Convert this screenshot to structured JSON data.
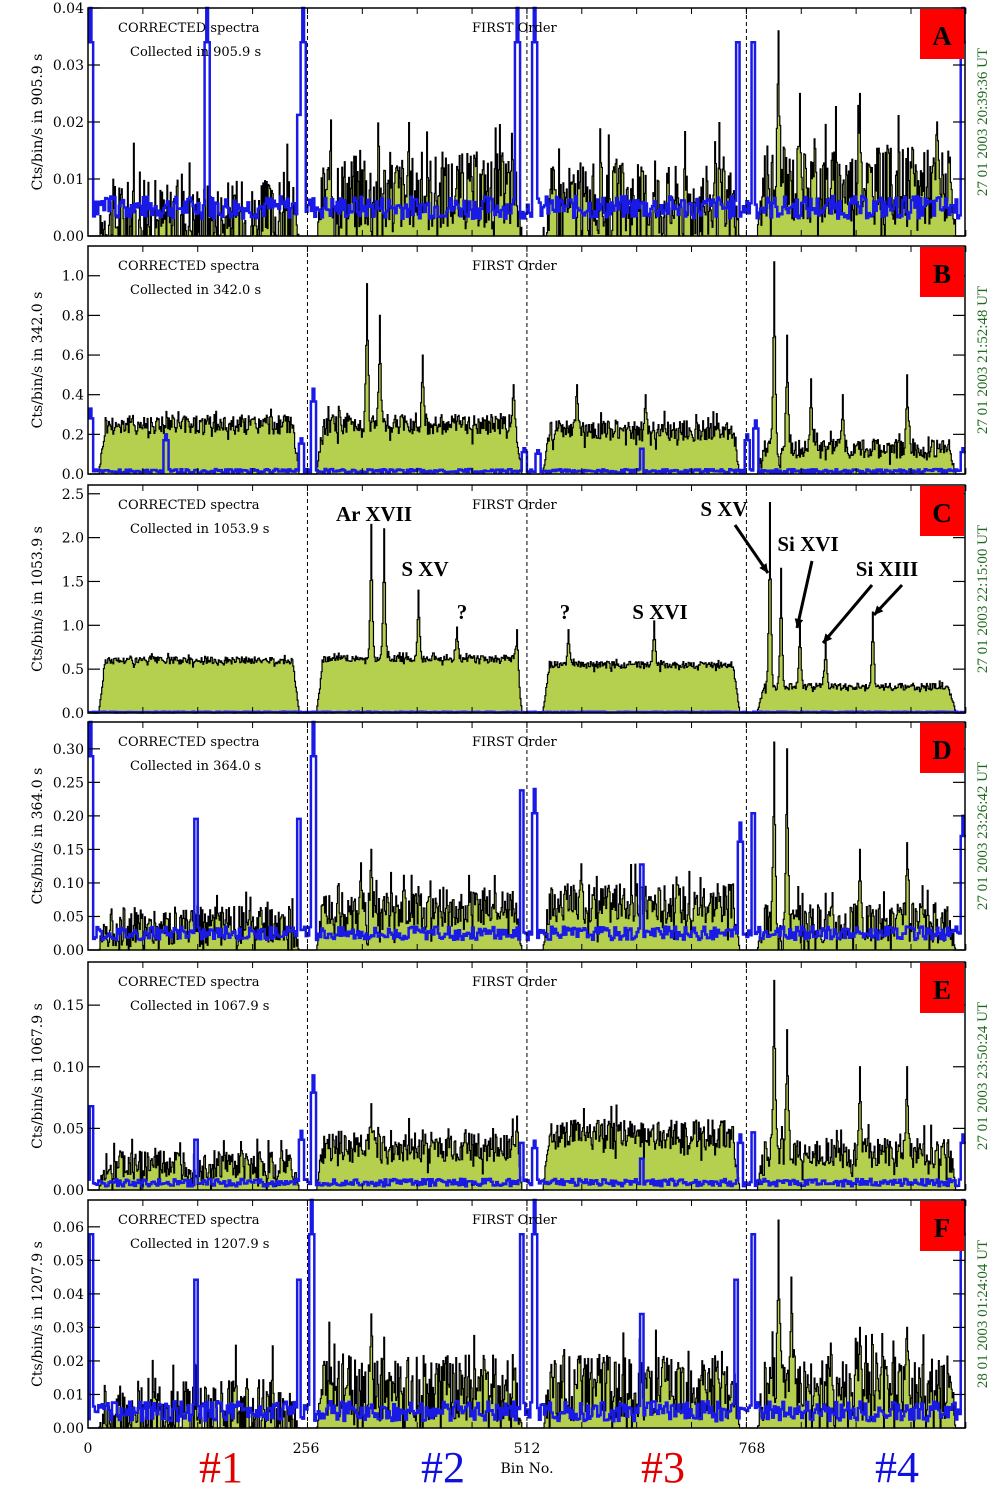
{
  "colors": {
    "fill": "#b5cf4f",
    "outline": "#000000",
    "blue": "#1a1ae6",
    "badge": "#ff0000",
    "date_text": "#1f6a1f",
    "section_red": "#e00000",
    "section_blue": "#1010e0"
  },
  "chart_data": [
    {
      "type": "area",
      "panel": "A",
      "annotation_line1": "CORRECTED spectra",
      "annotation_line2": "Collected in   905.9 s",
      "order_label": "FIRST Order",
      "ylabel": "Cts/bin/s in   905.9 s",
      "right_label": "27 01 2003   20:39:36 UT",
      "ylim": [
        0,
        0.04
      ],
      "yticks": [
        "0.00",
        "0.01",
        "0.02",
        "0.03",
        "0.04"
      ],
      "ytick_values": [
        0,
        0.01,
        0.02,
        0.03,
        0.04
      ],
      "baseline": [
        0.003,
        0.008,
        0.006,
        0.009
      ],
      "noise": 0.007,
      "blue_level": 0.005,
      "blue_noise": 0.002,
      "blue_spikes": [
        [
          2,
          0.04
        ],
        [
          138,
          0.04
        ],
        [
          245,
          0.025
        ],
        [
          250,
          0.04
        ],
        [
          500,
          0.04
        ],
        [
          520,
          0.04
        ],
        [
          757,
          0.04
        ],
        [
          775,
          0.04
        ],
        [
          1020,
          0.04
        ]
      ],
      "peaks": [
        [
          805,
          0.036
        ],
        [
          830,
          0.025
        ],
        [
          900,
          0.025
        ],
        [
          990,
          0.02
        ]
      ],
      "lines": []
    },
    {
      "type": "area",
      "panel": "B",
      "annotation_line1": "CORRECTED spectra",
      "annotation_line2": "Collected in   342.0 s",
      "order_label": "FIRST Order",
      "ylabel": "Cts/bin/s in   342.0 s",
      "right_label": "27 01 2003   21:52:48 UT",
      "ylim": [
        0,
        1.15
      ],
      "yticks": [
        "0.0",
        "0.2",
        "0.4",
        "0.6",
        "0.8",
        "1.0"
      ],
      "ytick_values": [
        0,
        0.2,
        0.4,
        0.6,
        0.8,
        1.0
      ],
      "baseline": [
        0.25,
        0.25,
        0.22,
        0.13
      ],
      "noise": 0.05,
      "blue_level": 0.015,
      "blue_noise": 0.01,
      "blue_spikes": [
        [
          2,
          0.33
        ],
        [
          90,
          0.2
        ],
        [
          248,
          0.18
        ],
        [
          262,
          0.43
        ],
        [
          508,
          0.13
        ],
        [
          524,
          0.12
        ],
        [
          645,
          0.15
        ],
        [
          768,
          0.2
        ],
        [
          778,
          0.27
        ],
        [
          1020,
          0.13
        ]
      ],
      "peaks": [
        [
          325,
          0.96
        ],
        [
          340,
          0.8
        ],
        [
          390,
          0.6
        ],
        [
          496,
          0.45
        ],
        [
          570,
          0.45
        ],
        [
          650,
          0.4
        ],
        [
          800,
          1.07
        ],
        [
          815,
          0.7
        ],
        [
          843,
          0.48
        ],
        [
          880,
          0.4
        ],
        [
          955,
          0.5
        ]
      ],
      "lines": []
    },
    {
      "type": "area",
      "panel": "C",
      "annotation_line1": "CORRECTED spectra",
      "annotation_line2": "Collected in   1053.9 s",
      "order_label": "FIRST Order",
      "ylabel": "Cts/bin/s in   1053.9 s",
      "right_label": "27 01 2003   22:15:00 UT",
      "ylim": [
        0,
        2.6
      ],
      "yticks": [
        "0.0",
        "0.5",
        "1.0",
        "1.5",
        "2.0",
        "2.5"
      ],
      "ytick_values": [
        0,
        0.5,
        1.0,
        1.5,
        2.0,
        2.5
      ],
      "baseline": [
        0.6,
        0.62,
        0.55,
        0.3
      ],
      "noise": 0.04,
      "blue_level": 0.01,
      "blue_noise": 0.005,
      "blue_spikes": [],
      "peaks": [
        [
          330,
          2.15
        ],
        [
          345,
          2.1
        ],
        [
          385,
          1.4
        ],
        [
          430,
          0.98
        ],
        [
          500,
          0.95
        ],
        [
          560,
          0.95
        ],
        [
          660,
          1.05
        ],
        [
          795,
          2.4
        ],
        [
          808,
          1.65
        ],
        [
          830,
          1.05
        ],
        [
          860,
          0.85
        ],
        [
          915,
          1.15
        ]
      ],
      "lines": [
        {
          "label": "Ar XVII",
          "bin": 335,
          "value": 2.3
        },
        {
          "label": "S XV",
          "bin": 390,
          "value": 1.75
        },
        {
          "label": "?",
          "bin": 430,
          "value": 1.25
        },
        {
          "label": "?",
          "bin": 560,
          "value": 1.25
        },
        {
          "label": "S XVI",
          "bin": 660,
          "value": 1.25
        },
        {
          "label": "S XV",
          "bin": 795,
          "value": 2.4
        },
        {
          "label": "Si XVI",
          "bin": 830,
          "value": 1.05
        },
        {
          "label": "Si XIII",
          "bin": 915,
          "value": 1.15
        }
      ]
    },
    {
      "type": "area",
      "panel": "D",
      "annotation_line1": "CORRECTED spectra",
      "annotation_line2": "Collected in   364.0 s",
      "order_label": "FIRST Order",
      "ylabel": "Cts/bin/s in   364.0 s",
      "right_label": "27 01 2003   23:26:42 UT",
      "ylim": [
        0,
        0.34
      ],
      "yticks": [
        "0.00",
        "0.05",
        "0.10",
        "0.15",
        "0.20",
        "0.25",
        "0.30"
      ],
      "ytick_values": [
        0,
        0.05,
        0.1,
        0.15,
        0.2,
        0.25,
        0.3
      ],
      "baseline": [
        0.035,
        0.06,
        0.07,
        0.04
      ],
      "noise": 0.03,
      "blue_level": 0.025,
      "blue_noise": 0.01,
      "blue_spikes": [
        [
          2,
          0.34
        ],
        [
          125,
          0.23
        ],
        [
          245,
          0.23
        ],
        [
          262,
          0.34
        ],
        [
          505,
          0.28
        ],
        [
          520,
          0.24
        ],
        [
          645,
          0.15
        ],
        [
          760,
          0.19
        ],
        [
          775,
          0.24
        ],
        [
          1020,
          0.2
        ]
      ],
      "peaks": [
        [
          318,
          0.13
        ],
        [
          330,
          0.15
        ],
        [
          800,
          0.31
        ],
        [
          815,
          0.3
        ],
        [
          900,
          0.15
        ],
        [
          955,
          0.16
        ]
      ],
      "lines": []
    },
    {
      "type": "area",
      "panel": "E",
      "annotation_line1": "CORRECTED spectra",
      "annotation_line2": "Collected in   1067.9 s",
      "order_label": "FIRST Order",
      "ylabel": "Cts/bin/s in   1067.9 s",
      "right_label": "27 01 2003   23:50:24 UT",
      "ylim": [
        0,
        0.185
      ],
      "yticks": [
        "0.00",
        "0.05",
        "0.10",
        "0.15"
      ],
      "ytick_values": [
        0,
        0.05,
        0.1,
        0.15
      ],
      "baseline": [
        0.02,
        0.035,
        0.045,
        0.03
      ],
      "noise": 0.012,
      "blue_level": 0.006,
      "blue_noise": 0.003,
      "blue_spikes": [
        [
          3,
          0.08
        ],
        [
          125,
          0.048
        ],
        [
          248,
          0.048
        ],
        [
          262,
          0.093
        ],
        [
          505,
          0.045
        ],
        [
          520,
          0.04
        ],
        [
          645,
          0.03
        ],
        [
          760,
          0.045
        ],
        [
          775,
          0.055
        ],
        [
          1020,
          0.045
        ]
      ],
      "peaks": [
        [
          330,
          0.07
        ],
        [
          500,
          0.06
        ],
        [
          800,
          0.17
        ],
        [
          815,
          0.13
        ],
        [
          900,
          0.1
        ],
        [
          955,
          0.1
        ]
      ],
      "lines": []
    },
    {
      "type": "area",
      "panel": "F",
      "annotation_line1": "CORRECTED spectra",
      "annotation_line2": "Collected in   1207.9 s",
      "order_label": "FIRST Order",
      "ylabel": "Cts/bin/s in   1207.9 s",
      "right_label": "28 01 2003   01:24:04 UT",
      "ylim": [
        0,
        0.068
      ],
      "yticks": [
        "0.00",
        "0.01",
        "0.02",
        "0.03",
        "0.04",
        "0.05",
        "0.06"
      ],
      "ytick_values": [
        0,
        0.01,
        0.02,
        0.03,
        0.04,
        0.05,
        0.06
      ],
      "baseline": [
        0.005,
        0.012,
        0.012,
        0.012
      ],
      "noise": 0.01,
      "blue_level": 0.005,
      "blue_noise": 0.003,
      "blue_spikes": [
        [
          3,
          0.068
        ],
        [
          125,
          0.052
        ],
        [
          245,
          0.052
        ],
        [
          260,
          0.068
        ],
        [
          505,
          0.068
        ],
        [
          520,
          0.068
        ],
        [
          645,
          0.04
        ],
        [
          755,
          0.052
        ],
        [
          775,
          0.068
        ],
        [
          1020,
          0.068
        ]
      ],
      "peaks": [
        [
          330,
          0.034
        ],
        [
          805,
          0.062
        ],
        [
          820,
          0.045
        ],
        [
          900,
          0.03
        ],
        [
          955,
          0.03
        ]
      ],
      "lines": []
    }
  ],
  "x_axis": {
    "label": "Bin No.",
    "ticks": [
      "0",
      "256",
      "512",
      "768"
    ],
    "tick_values": [
      0,
      256,
      512,
      768
    ],
    "xlim": [
      0,
      1023
    ],
    "dividers": [
      256,
      512,
      768
    ]
  },
  "sections": [
    {
      "label": "#1",
      "color": "#e00000"
    },
    {
      "label": "#2",
      "color": "#1010e0"
    },
    {
      "label": "#3",
      "color": "#e00000"
    },
    {
      "label": "#4",
      "color": "#1010e0"
    }
  ]
}
